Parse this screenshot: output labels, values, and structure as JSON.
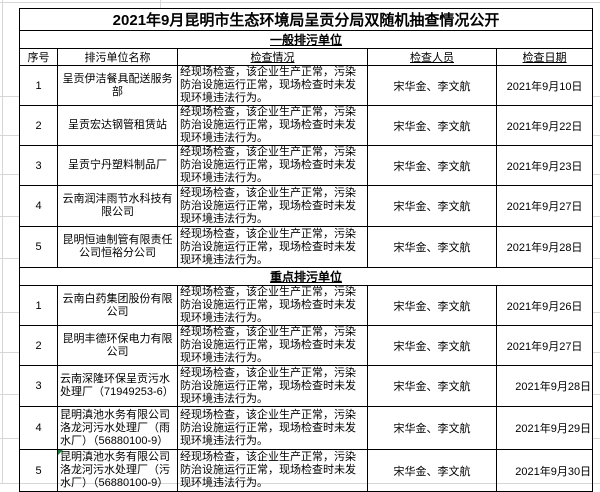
{
  "title": "2021年9月昆明市生态环境局呈贡分局双随机抽查情况公开",
  "columns": [
    "序号",
    "排污单位名称",
    "检查情况",
    "检查人员",
    "检查日期"
  ],
  "sections": [
    {
      "label": "一般排污单位",
      "rows": [
        {
          "no": "1",
          "name": "呈贡伊洁餐具配送服务部",
          "result": "经现场检查，该企业生产正常，污染防治设施运行正常，现场检查时未发现环境违法行为。",
          "inspectors": "宋华金、李文航",
          "date": "2021年9月10日",
          "date_align": "center",
          "name_align": "center",
          "error_marker": false
        },
        {
          "no": "2",
          "name": "呈贡宏达钢管租赁站",
          "result": "经现场检查，该企业生产正常，污染防治设施运行正常，现场检查时未发现环境违法行为。",
          "inspectors": "宋华金、李文航",
          "date": "2021年9月22日",
          "date_align": "center",
          "name_align": "center",
          "error_marker": false
        },
        {
          "no": "3",
          "name": "呈贡宁丹塑料制品厂",
          "result": "经现场检查，该企业生产正常，污染防治设施运行正常，现场检查时未发现环境违法行为。",
          "inspectors": "宋华金、李文航",
          "date": "2021年9月23日",
          "date_align": "center",
          "name_align": "center",
          "error_marker": false
        },
        {
          "no": "4",
          "name": "云南润沣雨节水科技有限公司",
          "result": "经现场检查，该企业生产正常，污染防治设施运行正常，现场检查时未发现环境违法行为。",
          "inspectors": "宋华金、李文航",
          "date": "2021年9月27日",
          "date_align": "center",
          "name_align": "center",
          "error_marker": false
        },
        {
          "no": "5",
          "name": "昆明恒迪制管有限责任公司恒裕分公司",
          "result": "经现场检查，该企业生产正常，污染防治设施运行正常，现场检查时未发现环境违法行为。",
          "inspectors": "宋华金、李文航",
          "date": "2021年9月28日",
          "date_align": "center",
          "name_align": "center",
          "error_marker": false
        }
      ]
    },
    {
      "label": "重点排污单位",
      "rows": [
        {
          "no": "1",
          "name": "云南白药集团股份有限公司",
          "result": "经现场检查，该企业生产正常，污染防治设施运行正常，现场检查时未发现环境违法行为。",
          "inspectors": "宋华金、李文航",
          "date": "2021年9月26日",
          "date_align": "center",
          "name_align": "center",
          "error_marker": false
        },
        {
          "no": "2",
          "name": "昆明丰德环保电力有限公司",
          "result": "经现场检查，该企业生产正常，污染防治设施运行正常，现场检查时未发现环境违法行为。",
          "inspectors": "宋华金、李文航",
          "date": "2021年9月27日",
          "date_align": "center",
          "name_align": "center",
          "error_marker": false
        },
        {
          "no": "3",
          "name": "云南深隆环保呈贡污水处理厂（71949253-6）",
          "result": "经现场检查，该企业生产正常，污染防治设施运行正常，现场检查时未发现环境违法行为。",
          "inspectors": "宋华金、李文航",
          "date": "2021年9月28日",
          "date_align": "right",
          "name_align": "left",
          "error_marker": false
        },
        {
          "no": "4",
          "name": "昆明滇池水务有限公司洛龙河污水处理厂（雨水厂）（56880100-9）",
          "result": "经现场检查，该企业生产正常，污染防治设施运行正常，现场检查时未发现环境违法行为。",
          "inspectors": "宋华金、李文航",
          "date": "2021年9月29日",
          "date_align": "right",
          "name_align": "left",
          "error_marker": false
        },
        {
          "no": "5",
          "name": "昆明滇池水务有限公司洛龙河污水处理厂（污水厂）（56880100-9）",
          "result": "经现场检查，该企业生产正常，污染防治设施运行正常，现场检查时未发现环境违法行为。",
          "inspectors": "宋华金、李文航",
          "date": "2021年9月30日",
          "date_align": "right",
          "name_align": "left",
          "error_marker": true
        }
      ]
    }
  ],
  "colors": {
    "table_border": "#000000",
    "margin_gridline": "#d6d6d6",
    "error_marker_green": "#1f7e3a",
    "text": "#000000",
    "background": "#ffffff"
  }
}
